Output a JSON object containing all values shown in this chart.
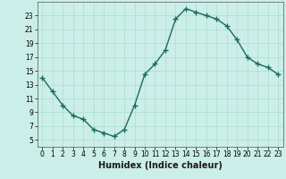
{
  "x": [
    0,
    1,
    2,
    3,
    4,
    5,
    6,
    7,
    8,
    9,
    10,
    11,
    12,
    13,
    14,
    15,
    16,
    17,
    18,
    19,
    20,
    21,
    22,
    23
  ],
  "y": [
    14.0,
    12.0,
    10.0,
    8.5,
    8.0,
    6.5,
    6.0,
    5.5,
    6.5,
    10.0,
    14.5,
    16.0,
    18.0,
    22.5,
    24.0,
    23.5,
    23.0,
    22.5,
    21.5,
    19.5,
    17.0,
    16.0,
    15.5,
    14.5
  ],
  "line_color": "#1a6b5e",
  "marker": "+",
  "markersize": 4,
  "linewidth": 1.0,
  "markeredgewidth": 1.0,
  "background_color": "#cceee8",
  "grid_color": "#aaddcc",
  "xlabel": "Humidex (Indice chaleur)",
  "xlim": [
    -0.5,
    23.5
  ],
  "ylim": [
    4,
    25
  ],
  "yticks": [
    5,
    7,
    9,
    11,
    13,
    15,
    17,
    19,
    21,
    23
  ],
  "xticks": [
    0,
    1,
    2,
    3,
    4,
    5,
    6,
    7,
    8,
    9,
    10,
    11,
    12,
    13,
    14,
    15,
    16,
    17,
    18,
    19,
    20,
    21,
    22,
    23
  ],
  "tick_fontsize": 5.5,
  "xlabel_fontsize": 7
}
